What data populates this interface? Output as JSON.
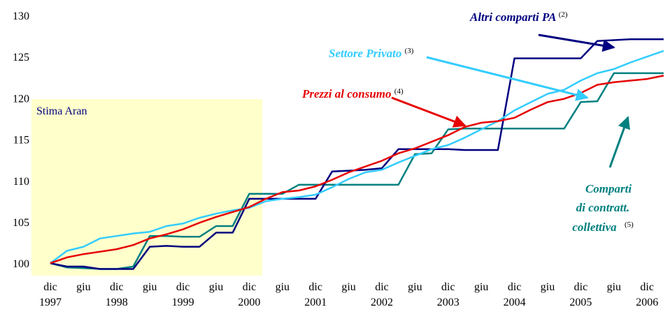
{
  "chart_data": {
    "type": "line",
    "categories": [
      "dic",
      null,
      "giu",
      null,
      "dic",
      null,
      "giu",
      null,
      "dic",
      null,
      "giu",
      null,
      "dic",
      null,
      "giu",
      null,
      "dic",
      null,
      "giu",
      null,
      "dic",
      null,
      "giu",
      null,
      "dic",
      null,
      "giu",
      null,
      "dic",
      null,
      "giu",
      null,
      "dic",
      null,
      "giu",
      null,
      "dic",
      null
    ],
    "years": [
      "1997",
      null,
      null,
      null,
      "1998",
      null,
      null,
      null,
      "1999",
      null,
      null,
      null,
      "2000",
      null,
      null,
      null,
      "2001",
      null,
      null,
      null,
      "2002",
      null,
      null,
      null,
      "2003",
      null,
      null,
      null,
      "2004",
      null,
      null,
      null,
      "2005",
      null,
      null,
      null,
      "2006",
      null
    ],
    "ylim": [
      98.5,
      130
    ],
    "yticks": [
      100,
      105,
      110,
      115,
      120,
      125,
      130
    ],
    "grid": false,
    "series": [
      {
        "name": "Comparti di contratt. collettiva",
        "color": "#008080",
        "values": [
          100,
          99.5,
          99.4,
          99.3,
          99.3,
          99.6,
          103.3,
          103.3,
          103.2,
          103.2,
          104.5,
          104.5,
          108.4,
          108.4,
          108.4,
          109.5,
          109.5,
          109.5,
          109.5,
          109.5,
          109.5,
          109.5,
          113.2,
          113.3,
          116.2,
          116.3,
          116.3,
          116.3,
          116.3,
          116.3,
          116.3,
          116.3,
          119.5,
          119.6,
          123,
          123,
          123,
          123
        ]
      },
      {
        "name": "Altri comparti PA",
        "color": "#000080",
        "values": [
          100,
          99.6,
          99.6,
          99.3,
          99.3,
          99.3,
          102,
          102.1,
          102,
          102,
          103.7,
          103.7,
          107.8,
          107.8,
          107.8,
          107.8,
          107.8,
          111.1,
          111.2,
          111.3,
          111.5,
          113.8,
          113.8,
          113.8,
          113.8,
          113.7,
          113.7,
          113.7,
          124.8,
          124.8,
          124.8,
          124.8,
          124.8,
          126.9,
          127,
          127.1,
          127.1,
          127.1
        ]
      },
      {
        "name": "Settore Privato",
        "color": "#33ccff",
        "values": [
          100,
          101.5,
          102,
          103,
          103.3,
          103.6,
          103.8,
          104.5,
          104.8,
          105.5,
          106,
          106.4,
          106.7,
          107.5,
          107.8,
          108,
          108.3,
          109.2,
          110.2,
          111,
          111.3,
          112.2,
          113,
          113.8,
          114.3,
          115.2,
          116.2,
          117.2,
          118.5,
          119.5,
          120.5,
          121,
          122.1,
          123,
          123.5,
          124.3,
          125,
          125.7
        ]
      },
      {
        "name": "Prezzi al consumo",
        "color": "#e60000",
        "values": [
          100,
          100.7,
          101.1,
          101.4,
          101.7,
          102.2,
          103,
          103.5,
          104.1,
          104.9,
          105.6,
          106.2,
          106.8,
          107.8,
          108.6,
          108.8,
          109.3,
          110.1,
          111,
          111.7,
          112.4,
          113.3,
          113.9,
          114.7,
          115.5,
          116.5,
          117,
          117.2,
          117.6,
          118.6,
          119.5,
          119.9,
          120.6,
          121.6,
          121.9,
          122.1,
          122.3,
          122.7
        ]
      }
    ],
    "annotations": {
      "shade": "Stima Aran",
      "altri": {
        "text": "Altri comparti PA",
        "note": "(2)"
      },
      "privato": {
        "text": "Settore Privato",
        "note": "(3)"
      },
      "prezzi": {
        "text": "Prezzi al consumo",
        "note": "(4)"
      },
      "comparti": {
        "lines": [
          "Comparti",
          "di contratt.",
          "collettiva"
        ],
        "note": "(5)"
      }
    }
  }
}
